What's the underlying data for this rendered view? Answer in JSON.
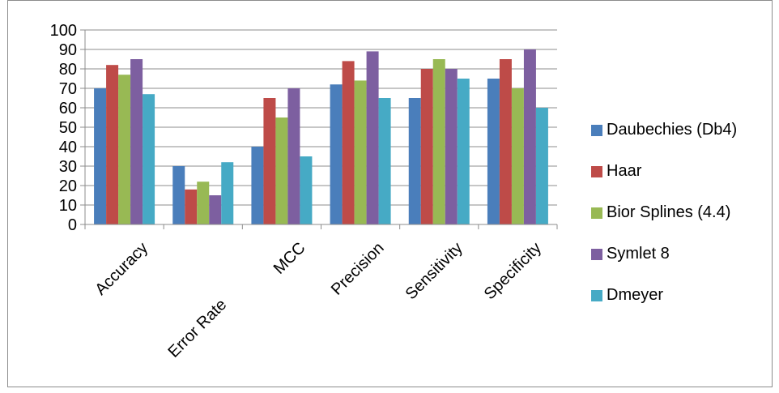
{
  "chart_data": {
    "type": "bar",
    "categories": [
      "Accuracy",
      "Error Rate",
      "MCC",
      "Precision",
      "Sensitivity",
      "Specificity"
    ],
    "series": [
      {
        "name": "Daubechies (Db4)",
        "color": "#4a7ebb",
        "values": [
          70,
          30,
          40,
          72,
          65,
          75
        ]
      },
      {
        "name": "Haar",
        "color": "#be4b48",
        "values": [
          82,
          18,
          65,
          84,
          80,
          85
        ]
      },
      {
        "name": "Bior Splines (4.4)",
        "color": "#98b954",
        "values": [
          77,
          22,
          55,
          74,
          85,
          70
        ]
      },
      {
        "name": "Symlet 8",
        "color": "#7d5fa0",
        "values": [
          85,
          15,
          70,
          89,
          80,
          90
        ]
      },
      {
        "name": "Dmeyer",
        "color": "#46aac5",
        "values": [
          67,
          32,
          35,
          65,
          75,
          60
        ]
      }
    ],
    "ylim": [
      0,
      100
    ],
    "yticks": [
      "0",
      "10",
      "20",
      "30",
      "40",
      "50",
      "60",
      "70",
      "80",
      "90",
      "100"
    ],
    "grid": true,
    "legend_position": "right",
    "xlabel": "",
    "ylabel": "",
    "title": ""
  }
}
